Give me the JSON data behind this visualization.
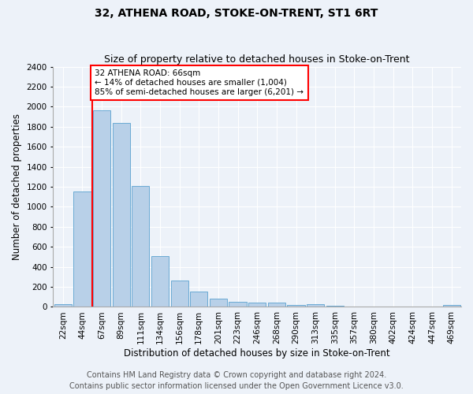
{
  "title": "32, ATHENA ROAD, STOKE-ON-TRENT, ST1 6RT",
  "subtitle": "Size of property relative to detached houses in Stoke-on-Trent",
  "xlabel": "Distribution of detached houses by size in Stoke-on-Trent",
  "ylabel": "Number of detached properties",
  "categories": [
    "22sqm",
    "44sqm",
    "67sqm",
    "89sqm",
    "111sqm",
    "134sqm",
    "156sqm",
    "178sqm",
    "201sqm",
    "223sqm",
    "246sqm",
    "268sqm",
    "290sqm",
    "313sqm",
    "335sqm",
    "357sqm",
    "380sqm",
    "402sqm",
    "424sqm",
    "447sqm",
    "469sqm"
  ],
  "values": [
    30,
    1150,
    1960,
    1840,
    1210,
    510,
    265,
    155,
    80,
    50,
    45,
    40,
    20,
    25,
    15,
    0,
    0,
    0,
    0,
    0,
    20
  ],
  "bar_color": "#b8d0e8",
  "bar_edge_color": "#6aaad4",
  "vline_x_index": 2,
  "vline_color": "red",
  "annotation_text": "32 ATHENA ROAD: 66sqm\n← 14% of detached houses are smaller (1,004)\n85% of semi-detached houses are larger (6,201) →",
  "annotation_box_color": "white",
  "annotation_box_edge_color": "red",
  "ylim": [
    0,
    2400
  ],
  "yticks": [
    0,
    200,
    400,
    600,
    800,
    1000,
    1200,
    1400,
    1600,
    1800,
    2000,
    2200,
    2400
  ],
  "footer1": "Contains HM Land Registry data © Crown copyright and database right 2024.",
  "footer2": "Contains public sector information licensed under the Open Government Licence v3.0.",
  "bg_color": "#edf2f9",
  "plot_bg_color": "#edf2f9",
  "title_fontsize": 10,
  "subtitle_fontsize": 9,
  "axis_label_fontsize": 8.5,
  "tick_fontsize": 7.5,
  "annotation_fontsize": 7.5,
  "footer_fontsize": 7
}
